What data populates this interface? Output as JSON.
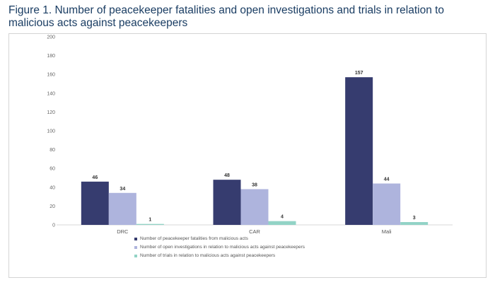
{
  "title": "Figure 1. Number of peacekeeper fatalities and open investigations and trials in relation to malicious acts against peacekeepers",
  "chart_data": {
    "type": "bar",
    "title": "Figure 1. Number of peacekeeper fatalities and open investigations and trials in relation to malicious acts against peacekeepers",
    "categories": [
      "DRC",
      "CAR",
      "Mali"
    ],
    "series": [
      {
        "name": "Number of peacekeeper fatalities from malicious acts",
        "values": [
          46,
          48,
          157
        ],
        "color": "#363c6f"
      },
      {
        "name": "Number of open investigations in relation to malicious acts against peacekeepers",
        "values": [
          34,
          38,
          44
        ],
        "color": "#aeb4dd"
      },
      {
        "name": "Number of trials in relation to malicious acts against peacekeepers",
        "values": [
          1,
          4,
          3
        ],
        "color": "#92d3c6"
      }
    ],
    "yticks": [
      0,
      20,
      40,
      60,
      80,
      100,
      120,
      140,
      160,
      180,
      200
    ],
    "ylim": [
      0,
      200
    ],
    "xlabel": "",
    "ylabel": "",
    "legend_position": "bottom",
    "grid": false
  }
}
